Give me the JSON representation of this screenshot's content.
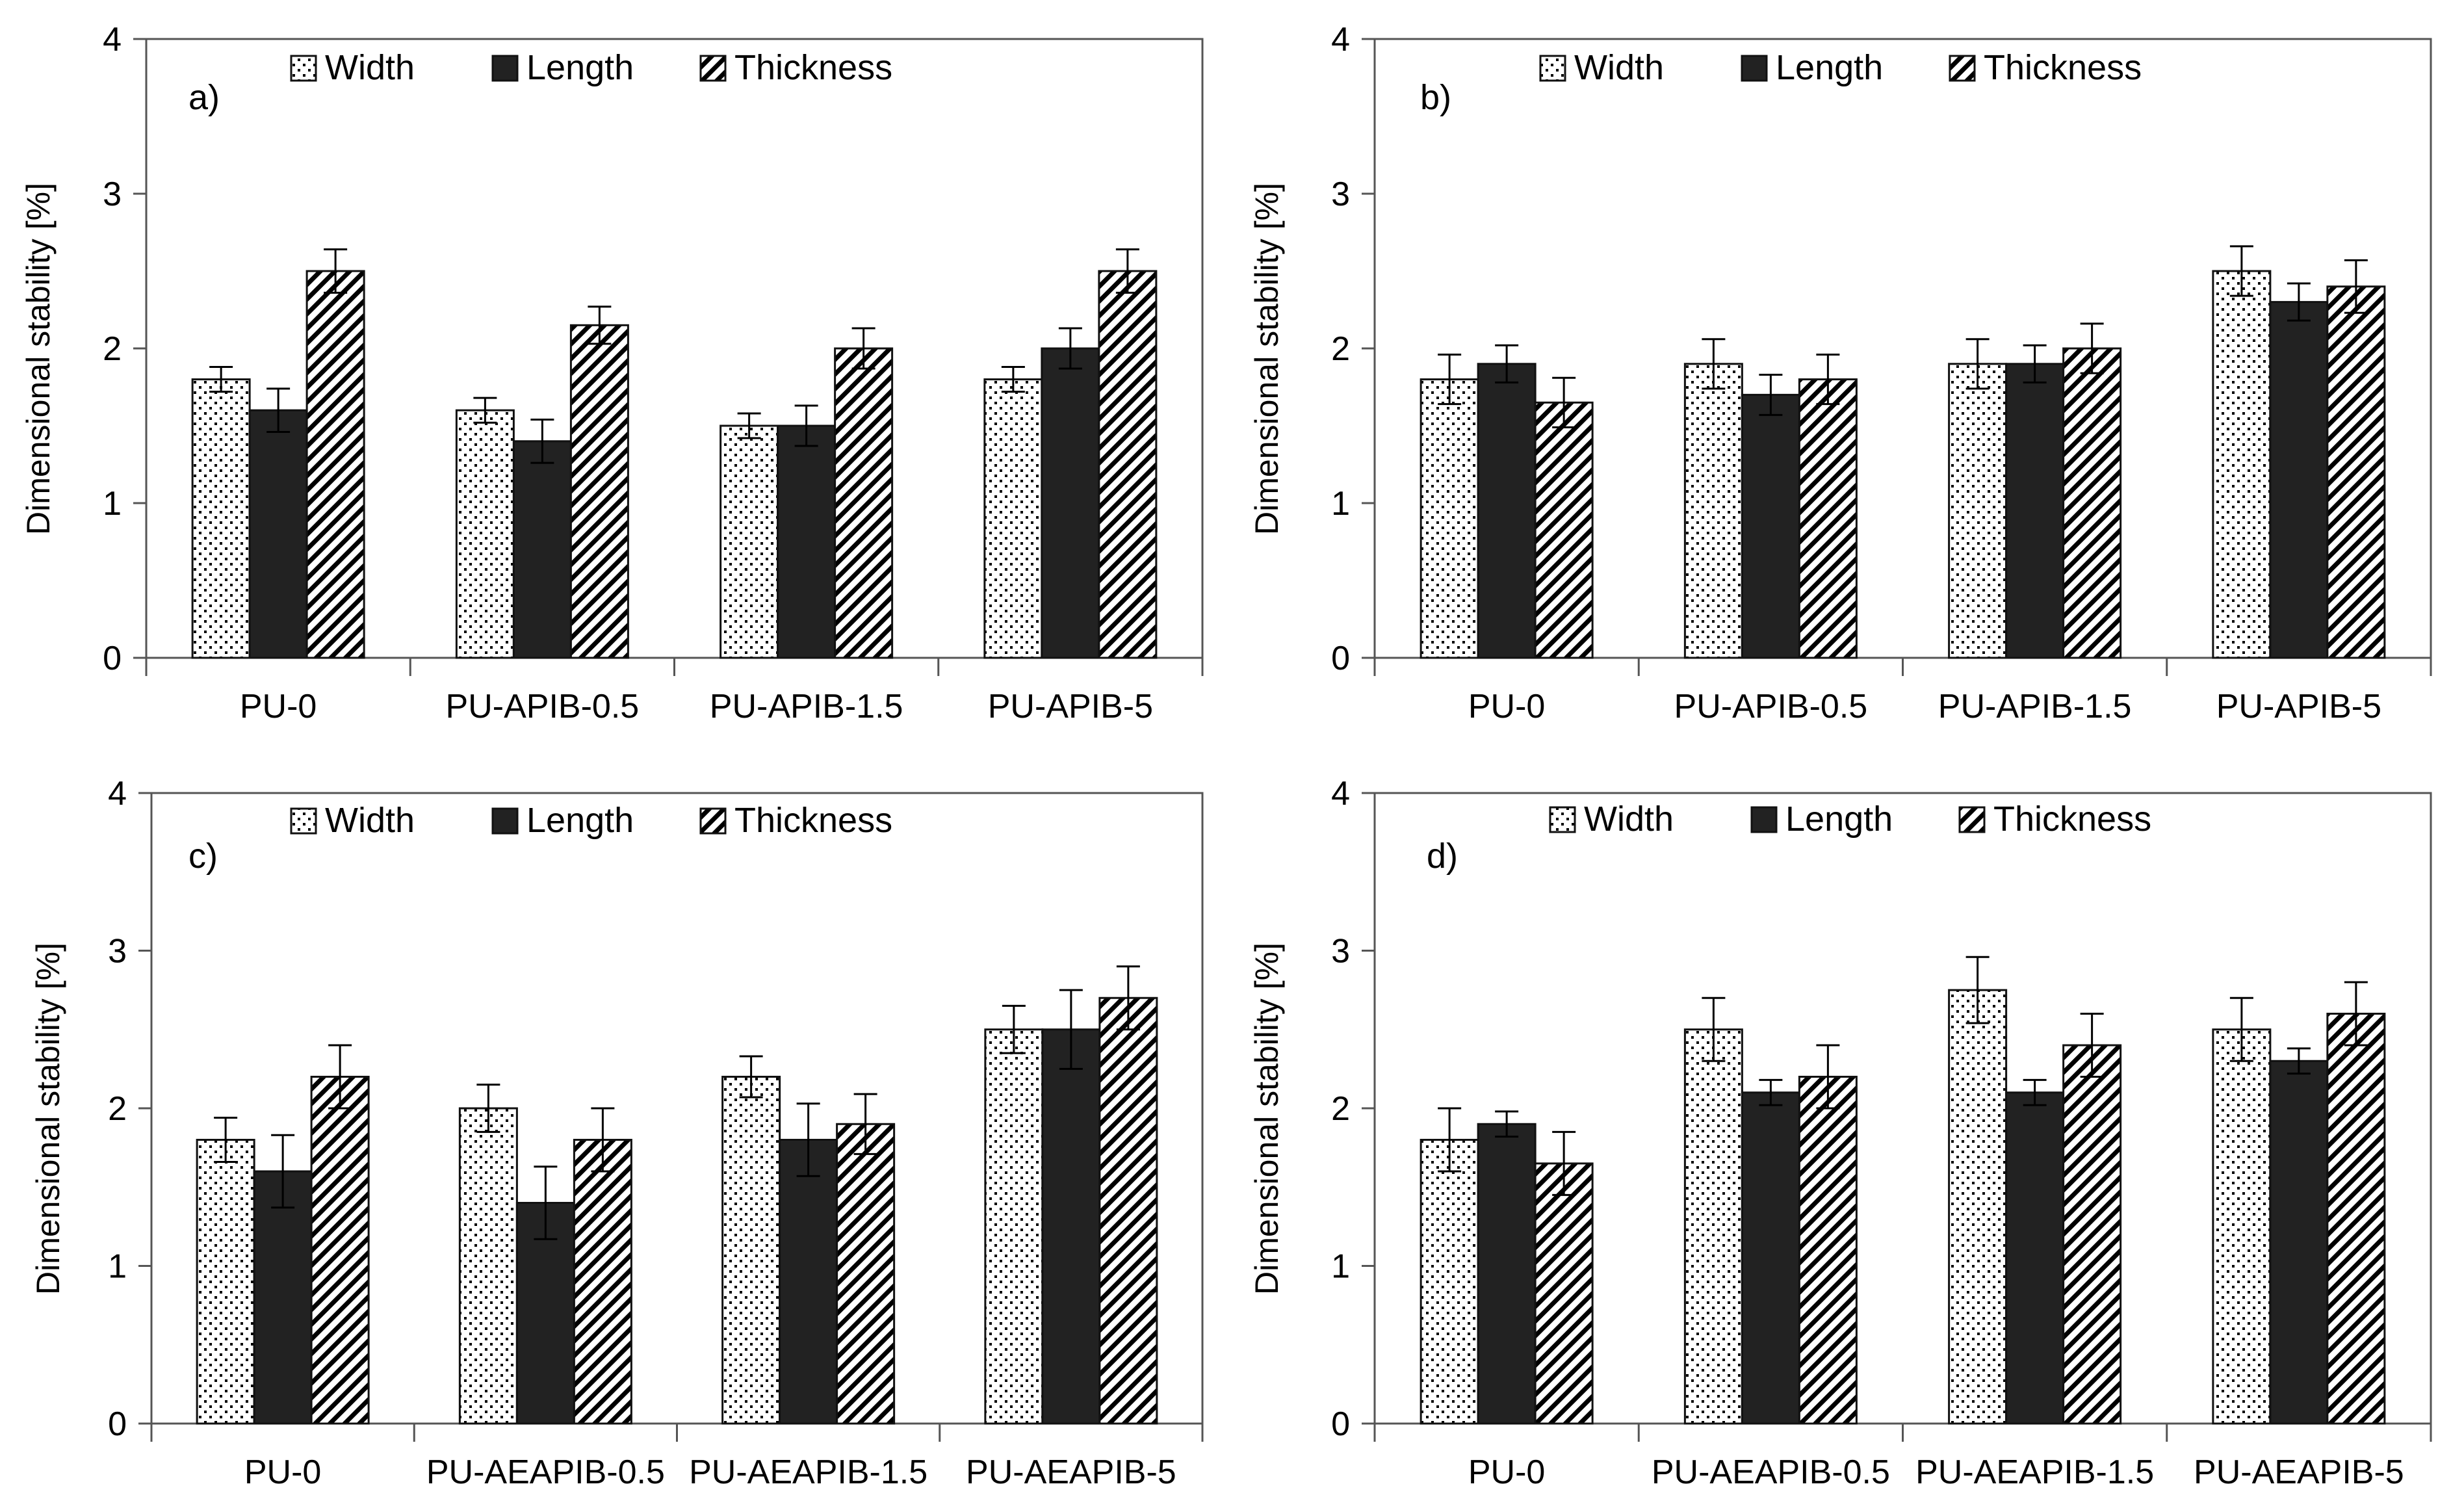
{
  "chart_data": [
    {
      "type": "bar",
      "panel_label": "a)",
      "ylabel": "Dimensional stability [%]",
      "ylim": [
        0,
        4
      ],
      "yticks": [
        "0",
        "1",
        "2",
        "3",
        "4"
      ],
      "categories": [
        "PU-0",
        "PU-APIB-0.5",
        "PU-APIB-1.5",
        "PU-APIB-5"
      ],
      "legend_position": "top",
      "series": [
        {
          "name": "Width",
          "pattern": "dots",
          "values": [
            1.8,
            1.6,
            1.5,
            1.8
          ],
          "errors": [
            0.08,
            0.08,
            0.08,
            0.08
          ]
        },
        {
          "name": "Length",
          "pattern": "solid",
          "values": [
            1.6,
            1.4,
            1.5,
            2.0
          ],
          "errors": [
            0.14,
            0.14,
            0.13,
            0.13
          ]
        },
        {
          "name": "Thickness",
          "pattern": "hatch",
          "values": [
            2.5,
            2.15,
            2.0,
            2.5
          ],
          "errors": [
            0.14,
            0.12,
            0.13,
            0.14
          ]
        }
      ]
    },
    {
      "type": "bar",
      "panel_label": "b)",
      "ylabel": "Dimensional stability [%]",
      "ylim": [
        0,
        4
      ],
      "yticks": [
        "0",
        "1",
        "2",
        "3",
        "4"
      ],
      "categories": [
        "PU-0",
        "PU-APIB-0.5",
        "PU-APIB-1.5",
        "PU-APIB-5"
      ],
      "legend_position": "top",
      "series": [
        {
          "name": "Width",
          "pattern": "dots",
          "values": [
            1.8,
            1.9,
            1.9,
            2.5
          ],
          "errors": [
            0.16,
            0.16,
            0.16,
            0.16
          ]
        },
        {
          "name": "Length",
          "pattern": "solid",
          "values": [
            1.9,
            1.7,
            1.9,
            2.3
          ],
          "errors": [
            0.12,
            0.13,
            0.12,
            0.12
          ]
        },
        {
          "name": "Thickness",
          "pattern": "hatch",
          "values": [
            1.65,
            1.8,
            2.0,
            2.4
          ],
          "errors": [
            0.16,
            0.16,
            0.16,
            0.17
          ]
        }
      ]
    },
    {
      "type": "bar",
      "panel_label": "c)",
      "ylabel": "Dimensional stability [%]",
      "ylim": [
        0,
        4
      ],
      "yticks": [
        "0",
        "1",
        "2",
        "3",
        "4"
      ],
      "categories": [
        "PU-0",
        "PU-AEAPIB-0.5",
        "PU-AEAPIB-1.5",
        "PU-AEAPIB-5"
      ],
      "legend_position": "top",
      "series": [
        {
          "name": "Width",
          "pattern": "dots",
          "values": [
            1.8,
            2.0,
            2.2,
            2.5
          ],
          "errors": [
            0.14,
            0.15,
            0.13,
            0.15
          ]
        },
        {
          "name": "Length",
          "pattern": "solid",
          "values": [
            1.6,
            1.4,
            1.8,
            2.5
          ],
          "errors": [
            0.23,
            0.23,
            0.23,
            0.25
          ]
        },
        {
          "name": "Thickness",
          "pattern": "hatch",
          "values": [
            2.2,
            1.8,
            1.9,
            2.7
          ],
          "errors": [
            0.2,
            0.2,
            0.19,
            0.2
          ]
        }
      ]
    },
    {
      "type": "bar",
      "panel_label": "d)",
      "ylabel": "Dimensional stability [%]",
      "ylim": [
        0,
        4
      ],
      "yticks": [
        "0",
        "1",
        "2",
        "3",
        "4"
      ],
      "categories": [
        "PU-0",
        "PU-AEAPIB-0.5",
        "PU-AEAPIB-1.5",
        "PU-AEAPIB-5"
      ],
      "legend_position": "top",
      "series": [
        {
          "name": "Width",
          "pattern": "dots",
          "values": [
            1.8,
            2.5,
            2.75,
            2.5
          ],
          "errors": [
            0.2,
            0.2,
            0.21,
            0.2
          ]
        },
        {
          "name": "Length",
          "pattern": "solid",
          "values": [
            1.9,
            2.1,
            2.1,
            2.3
          ],
          "errors": [
            0.08,
            0.08,
            0.08,
            0.08
          ]
        },
        {
          "name": "Thickness",
          "pattern": "hatch",
          "values": [
            1.65,
            2.2,
            2.4,
            2.6
          ],
          "errors": [
            0.2,
            0.2,
            0.2,
            0.2
          ]
        }
      ]
    }
  ]
}
